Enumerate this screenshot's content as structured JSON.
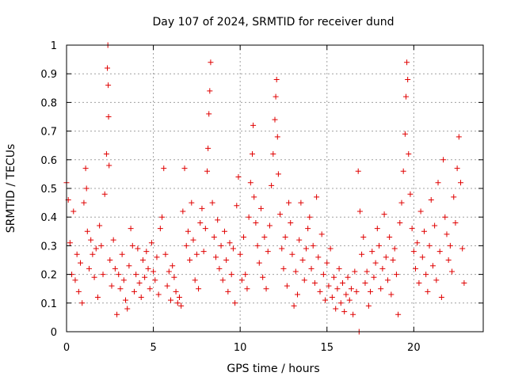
{
  "chart_data": {
    "type": "scatter",
    "title": "Day 107 of 2024, SRMTID for receiver dund",
    "xlabel": "GPS time / hours",
    "ylabel": "SRMTID / TECUs",
    "xlim": [
      0,
      24
    ],
    "ylim": [
      0,
      1
    ],
    "xticks": [
      0,
      5,
      10,
      15,
      20
    ],
    "xtick_labels": [
      "0",
      "5",
      "10",
      "15",
      "20"
    ],
    "yticks": [
      0,
      0.1,
      0.2,
      0.3,
      0.4,
      0.5,
      0.6,
      0.7,
      0.8,
      0.9,
      1
    ],
    "ytick_labels": [
      "0",
      "0.1",
      "0.2",
      "0.3",
      "0.4",
      "0.5",
      "0.6",
      "0.7",
      "0.8",
      "0.9",
      "1"
    ],
    "grid": true,
    "marker": "+",
    "color": "#e00000",
    "series": [
      {
        "name": "SRMTID",
        "points": [
          [
            0.0,
            0.52
          ],
          [
            0.1,
            0.46
          ],
          [
            0.2,
            0.31
          ],
          [
            0.3,
            0.2
          ],
          [
            0.4,
            0.42
          ],
          [
            0.5,
            0.18
          ],
          [
            0.6,
            0.27
          ],
          [
            0.7,
            0.14
          ],
          [
            0.8,
            0.24
          ],
          [
            0.9,
            0.1
          ],
          [
            1.0,
            0.45
          ],
          [
            1.1,
            0.57
          ],
          [
            1.15,
            0.5
          ],
          [
            1.2,
            0.35
          ],
          [
            1.3,
            0.22
          ],
          [
            1.4,
            0.32
          ],
          [
            1.5,
            0.27
          ],
          [
            1.6,
            0.19
          ],
          [
            1.7,
            0.29
          ],
          [
            1.8,
            0.12
          ],
          [
            1.9,
            0.37
          ],
          [
            2.0,
            0.3
          ],
          [
            2.1,
            0.2
          ],
          [
            2.2,
            0.48
          ],
          [
            2.3,
            0.62
          ],
          [
            2.35,
            0.92
          ],
          [
            2.38,
            1.0
          ],
          [
            2.4,
            0.86
          ],
          [
            2.42,
            0.75
          ],
          [
            2.45,
            0.58
          ],
          [
            2.5,
            0.25
          ],
          [
            2.6,
            0.16
          ],
          [
            2.7,
            0.32
          ],
          [
            2.8,
            0.22
          ],
          [
            2.9,
            0.06
          ],
          [
            3.0,
            0.2
          ],
          [
            3.1,
            0.15
          ],
          [
            3.2,
            0.27
          ],
          [
            3.3,
            0.18
          ],
          [
            3.4,
            0.11
          ],
          [
            3.5,
            0.08
          ],
          [
            3.6,
            0.23
          ],
          [
            3.7,
            0.36
          ],
          [
            3.8,
            0.3
          ],
          [
            3.9,
            0.14
          ],
          [
            4.0,
            0.2
          ],
          [
            4.1,
            0.29
          ],
          [
            4.2,
            0.17
          ],
          [
            4.3,
            0.12
          ],
          [
            4.4,
            0.25
          ],
          [
            4.5,
            0.19
          ],
          [
            4.6,
            0.28
          ],
          [
            4.7,
            0.22
          ],
          [
            4.8,
            0.15
          ],
          [
            4.9,
            0.31
          ],
          [
            5.0,
            0.21
          ],
          [
            5.1,
            0.18
          ],
          [
            5.2,
            0.26
          ],
          [
            5.3,
            0.13
          ],
          [
            5.4,
            0.36
          ],
          [
            5.5,
            0.4
          ],
          [
            5.6,
            0.57
          ],
          [
            5.7,
            0.27
          ],
          [
            5.8,
            0.16
          ],
          [
            5.9,
            0.21
          ],
          [
            6.0,
            0.11
          ],
          [
            6.1,
            0.23
          ],
          [
            6.2,
            0.19
          ],
          [
            6.3,
            0.14
          ],
          [
            6.4,
            0.1
          ],
          [
            6.5,
            0.12
          ],
          [
            6.6,
            0.09
          ],
          [
            6.7,
            0.42
          ],
          [
            6.8,
            0.57
          ],
          [
            6.9,
            0.3
          ],
          [
            7.0,
            0.35
          ],
          [
            7.1,
            0.25
          ],
          [
            7.2,
            0.45
          ],
          [
            7.3,
            0.32
          ],
          [
            7.4,
            0.18
          ],
          [
            7.5,
            0.27
          ],
          [
            7.6,
            0.15
          ],
          [
            7.7,
            0.38
          ],
          [
            7.8,
            0.43
          ],
          [
            7.9,
            0.28
          ],
          [
            8.0,
            0.36
          ],
          [
            8.1,
            0.56
          ],
          [
            8.15,
            0.64
          ],
          [
            8.2,
            0.76
          ],
          [
            8.25,
            0.84
          ],
          [
            8.3,
            0.94
          ],
          [
            8.4,
            0.45
          ],
          [
            8.5,
            0.33
          ],
          [
            8.6,
            0.26
          ],
          [
            8.7,
            0.39
          ],
          [
            8.8,
            0.22
          ],
          [
            8.9,
            0.3
          ],
          [
            9.0,
            0.18
          ],
          [
            9.1,
            0.35
          ],
          [
            9.2,
            0.25
          ],
          [
            9.3,
            0.14
          ],
          [
            9.4,
            0.31
          ],
          [
            9.5,
            0.2
          ],
          [
            9.6,
            0.29
          ],
          [
            9.7,
            0.1
          ],
          [
            9.8,
            0.44
          ],
          [
            9.9,
            0.54
          ],
          [
            10.0,
            0.27
          ],
          [
            10.1,
            0.18
          ],
          [
            10.2,
            0.33
          ],
          [
            10.3,
            0.2
          ],
          [
            10.4,
            0.15
          ],
          [
            10.5,
            0.4
          ],
          [
            10.6,
            0.52
          ],
          [
            10.7,
            0.62
          ],
          [
            10.75,
            0.72
          ],
          [
            10.8,
            0.47
          ],
          [
            10.9,
            0.38
          ],
          [
            11.0,
            0.3
          ],
          [
            11.1,
            0.24
          ],
          [
            11.2,
            0.43
          ],
          [
            11.3,
            0.19
          ],
          [
            11.4,
            0.33
          ],
          [
            11.5,
            0.15
          ],
          [
            11.6,
            0.28
          ],
          [
            11.7,
            0.37
          ],
          [
            11.8,
            0.51
          ],
          [
            11.9,
            0.62
          ],
          [
            12.0,
            0.74
          ],
          [
            12.05,
            0.82
          ],
          [
            12.1,
            0.88
          ],
          [
            12.15,
            0.68
          ],
          [
            12.2,
            0.55
          ],
          [
            12.3,
            0.41
          ],
          [
            12.4,
            0.29
          ],
          [
            12.5,
            0.22
          ],
          [
            12.6,
            0.33
          ],
          [
            12.7,
            0.16
          ],
          [
            12.8,
            0.45
          ],
          [
            12.9,
            0.38
          ],
          [
            13.0,
            0.27
          ],
          [
            13.1,
            0.09
          ],
          [
            13.2,
            0.21
          ],
          [
            13.3,
            0.13
          ],
          [
            13.4,
            0.32
          ],
          [
            13.5,
            0.45
          ],
          [
            13.6,
            0.25
          ],
          [
            13.7,
            0.18
          ],
          [
            13.8,
            0.29
          ],
          [
            13.9,
            0.36
          ],
          [
            14.0,
            0.4
          ],
          [
            14.1,
            0.22
          ],
          [
            14.2,
            0.3
          ],
          [
            14.3,
            0.17
          ],
          [
            14.4,
            0.47
          ],
          [
            14.5,
            0.26
          ],
          [
            14.6,
            0.14
          ],
          [
            14.7,
            0.34
          ],
          [
            14.8,
            0.2
          ],
          [
            14.9,
            0.11
          ],
          [
            15.0,
            0.24
          ],
          [
            15.1,
            0.16
          ],
          [
            15.2,
            0.29
          ],
          [
            15.3,
            0.12
          ],
          [
            15.4,
            0.19
          ],
          [
            15.5,
            0.08
          ],
          [
            15.6,
            0.15
          ],
          [
            15.7,
            0.22
          ],
          [
            15.8,
            0.1
          ],
          [
            15.9,
            0.17
          ],
          [
            16.0,
            0.07
          ],
          [
            16.1,
            0.13
          ],
          [
            16.2,
            0.19
          ],
          [
            16.3,
            0.11
          ],
          [
            16.4,
            0.15
          ],
          [
            16.5,
            0.06
          ],
          [
            16.6,
            0.21
          ],
          [
            16.7,
            0.14
          ],
          [
            16.8,
            0.56
          ],
          [
            16.9,
            0.42
          ],
          [
            17.0,
            0.27
          ],
          [
            17.1,
            0.33
          ],
          [
            17.2,
            0.17
          ],
          [
            17.3,
            0.21
          ],
          [
            17.4,
            0.09
          ],
          [
            17.5,
            0.14
          ],
          [
            17.6,
            0.28
          ],
          [
            17.7,
            0.19
          ],
          [
            17.8,
            0.24
          ],
          [
            17.9,
            0.36
          ],
          [
            18.0,
            0.3
          ],
          [
            18.1,
            0.15
          ],
          [
            18.2,
            0.22
          ],
          [
            18.3,
            0.41
          ],
          [
            18.4,
            0.26
          ],
          [
            18.5,
            0.18
          ],
          [
            18.6,
            0.33
          ],
          [
            18.7,
            0.13
          ],
          [
            18.8,
            0.25
          ],
          [
            18.9,
            0.29
          ],
          [
            19.0,
            0.2
          ],
          [
            19.1,
            0.06
          ],
          [
            19.2,
            0.38
          ],
          [
            19.3,
            0.45
          ],
          [
            19.4,
            0.56
          ],
          [
            19.5,
            0.69
          ],
          [
            19.55,
            0.82
          ],
          [
            19.6,
            0.94
          ],
          [
            19.65,
            0.88
          ],
          [
            19.7,
            0.62
          ],
          [
            19.8,
            0.48
          ],
          [
            19.9,
            0.36
          ],
          [
            20.0,
            0.28
          ],
          [
            20.1,
            0.22
          ],
          [
            20.2,
            0.31
          ],
          [
            20.3,
            0.17
          ],
          [
            20.4,
            0.42
          ],
          [
            20.5,
            0.26
          ],
          [
            20.6,
            0.35
          ],
          [
            20.7,
            0.2
          ],
          [
            20.8,
            0.14
          ],
          [
            20.9,
            0.3
          ],
          [
            21.0,
            0.46
          ],
          [
            21.1,
            0.23
          ],
          [
            21.2,
            0.37
          ],
          [
            21.3,
            0.18
          ],
          [
            21.4,
            0.52
          ],
          [
            21.5,
            0.28
          ],
          [
            21.6,
            0.12
          ],
          [
            21.7,
            0.6
          ],
          [
            21.8,
            0.4
          ],
          [
            21.9,
            0.34
          ],
          [
            22.0,
            0.25
          ],
          [
            22.1,
            0.3
          ],
          [
            22.2,
            0.21
          ],
          [
            22.3,
            0.47
          ],
          [
            22.4,
            0.38
          ],
          [
            22.5,
            0.57
          ],
          [
            22.6,
            0.68
          ],
          [
            22.7,
            0.52
          ],
          [
            22.8,
            0.29
          ],
          [
            22.9,
            0.17
          ],
          [
            16.85,
            0.0
          ]
        ]
      }
    ]
  }
}
